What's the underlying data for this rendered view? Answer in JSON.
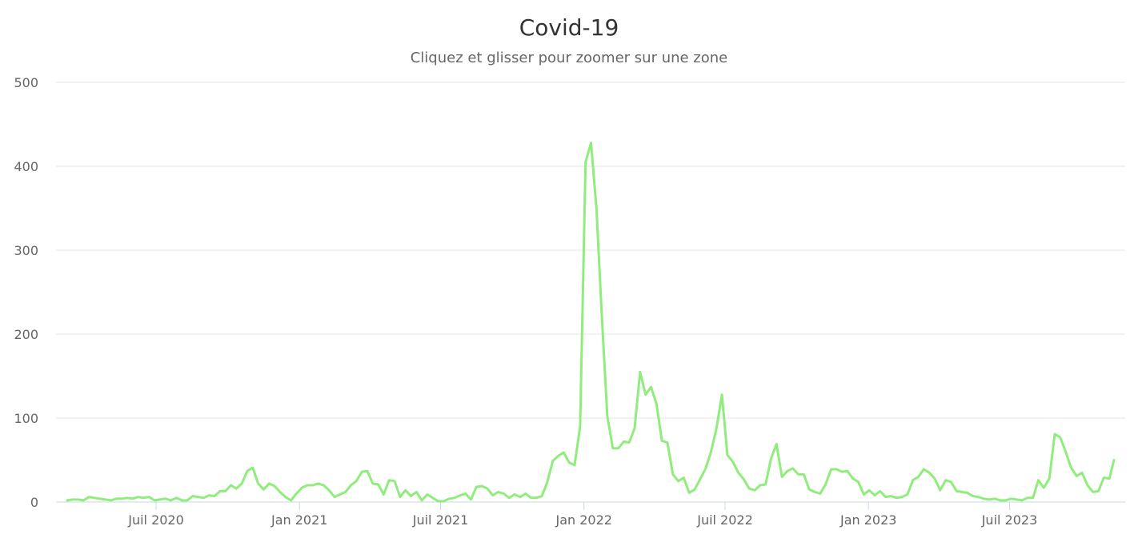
{
  "chart_data": {
    "type": "line",
    "title": "Covid-19",
    "subtitle": "Cliquez et glisser pour zoomer sur une zone",
    "xlabel": "",
    "ylabel": "",
    "ylim": [
      0,
      500
    ],
    "y_ticks": [
      "0",
      "100",
      "200",
      "300",
      "400",
      "500"
    ],
    "x_ticks": [
      {
        "label": "Juil 2020",
        "date": "2020-07-01"
      },
      {
        "label": "Jan 2021",
        "date": "2021-01-01"
      },
      {
        "label": "Juil 2021",
        "date": "2021-07-01"
      },
      {
        "label": "Jan 2022",
        "date": "2022-01-01"
      },
      {
        "label": "Juil 2022",
        "date": "2022-07-01"
      },
      {
        "label": "Jan 2023",
        "date": "2023-01-01"
      },
      {
        "label": "Juil 2023",
        "date": "2023-07-01"
      }
    ],
    "xlim": [
      "2020-03-09",
      "2023-11-12"
    ],
    "grid": true,
    "line_color": "#90ed7d",
    "series": [
      {
        "x": [
          "2020-03-09",
          "2020-03-16",
          "2020-03-23",
          "2020-03-30",
          "2020-04-06",
          "2020-04-13",
          "2020-04-20",
          "2020-04-27",
          "2020-05-04",
          "2020-05-11",
          "2020-05-18",
          "2020-05-25",
          "2020-06-01",
          "2020-06-08",
          "2020-06-15",
          "2020-06-22",
          "2020-06-29",
          "2020-07-06",
          "2020-07-13",
          "2020-07-20",
          "2020-07-27",
          "2020-08-03",
          "2020-08-10",
          "2020-08-17",
          "2020-08-24",
          "2020-08-31",
          "2020-09-07",
          "2020-09-14",
          "2020-09-21",
          "2020-09-28",
          "2020-10-05",
          "2020-10-12",
          "2020-10-19",
          "2020-10-26",
          "2020-11-02",
          "2020-11-09",
          "2020-11-16",
          "2020-11-23",
          "2020-11-30",
          "2020-12-07",
          "2020-12-14",
          "2020-12-21",
          "2020-12-28",
          "2021-01-04",
          "2021-01-11",
          "2021-01-18",
          "2021-01-25",
          "2021-02-01",
          "2021-02-08",
          "2021-02-15",
          "2021-02-22",
          "2021-03-01",
          "2021-03-08",
          "2021-03-15",
          "2021-03-22",
          "2021-03-29",
          "2021-04-05",
          "2021-04-12",
          "2021-04-19",
          "2021-04-26",
          "2021-05-03",
          "2021-05-10",
          "2021-05-17",
          "2021-05-24",
          "2021-05-31",
          "2021-06-07",
          "2021-06-14",
          "2021-06-21",
          "2021-06-28",
          "2021-07-05",
          "2021-07-12",
          "2021-07-19",
          "2021-07-26",
          "2021-08-02",
          "2021-08-09",
          "2021-08-16",
          "2021-08-23",
          "2021-08-30",
          "2021-09-06",
          "2021-09-13",
          "2021-09-20",
          "2021-09-27",
          "2021-10-04",
          "2021-10-11",
          "2021-10-18",
          "2021-10-25",
          "2021-11-01",
          "2021-11-08",
          "2021-11-15",
          "2021-11-22",
          "2021-11-29",
          "2021-12-06",
          "2021-12-13",
          "2021-12-20",
          "2021-12-27",
          "2022-01-03",
          "2022-01-10",
          "2022-01-17",
          "2022-01-24",
          "2022-01-31",
          "2022-02-07",
          "2022-02-14",
          "2022-02-21",
          "2022-02-28",
          "2022-03-07",
          "2022-03-14",
          "2022-03-21",
          "2022-03-28",
          "2022-04-04",
          "2022-04-11",
          "2022-04-18",
          "2022-04-25",
          "2022-05-02",
          "2022-05-09",
          "2022-05-16",
          "2022-05-23",
          "2022-05-30",
          "2022-06-06",
          "2022-06-13",
          "2022-06-20",
          "2022-06-27",
          "2022-07-04",
          "2022-07-11",
          "2022-07-18",
          "2022-07-25",
          "2022-08-01",
          "2022-08-08",
          "2022-08-15",
          "2022-08-22",
          "2022-08-29",
          "2022-09-05",
          "2022-09-12",
          "2022-09-19",
          "2022-09-26",
          "2022-10-03",
          "2022-10-10",
          "2022-10-17",
          "2022-10-24",
          "2022-10-31",
          "2022-11-07",
          "2022-11-14",
          "2022-11-21",
          "2022-11-28",
          "2022-12-05",
          "2022-12-12",
          "2022-12-19",
          "2022-12-26",
          "2023-01-02",
          "2023-01-09",
          "2023-01-16",
          "2023-01-23",
          "2023-01-30",
          "2023-02-06",
          "2023-02-13",
          "2023-02-20",
          "2023-02-27",
          "2023-03-06",
          "2023-03-13",
          "2023-03-20",
          "2023-03-27",
          "2023-04-03",
          "2023-04-10",
          "2023-04-17",
          "2023-04-24",
          "2023-05-01",
          "2023-05-08",
          "2023-05-15",
          "2023-05-22",
          "2023-05-29",
          "2023-06-05",
          "2023-06-12",
          "2023-06-19",
          "2023-06-26",
          "2023-07-03",
          "2023-07-10",
          "2023-07-17",
          "2023-07-24",
          "2023-07-31",
          "2023-08-07",
          "2023-08-14",
          "2023-08-21",
          "2023-08-28",
          "2023-09-04",
          "2023-09-11",
          "2023-09-18",
          "2023-09-25",
          "2023-10-02",
          "2023-10-09",
          "2023-10-16",
          "2023-10-23",
          "2023-10-30",
          "2023-11-06",
          "2023-11-12"
        ],
        "y": [
          2,
          3,
          3,
          2,
          6,
          5,
          4,
          3,
          2,
          4,
          4,
          5,
          4,
          6,
          5,
          6,
          2,
          3,
          4,
          2,
          5,
          2,
          2,
          7,
          6,
          5,
          8,
          7,
          13,
          13,
          20,
          16,
          22,
          37,
          41,
          22,
          15,
          22,
          19,
          12,
          6,
          2,
          10,
          17,
          20,
          20,
          22,
          20,
          14,
          6,
          9,
          12,
          20,
          25,
          36,
          37,
          22,
          21,
          9,
          26,
          25,
          6,
          14,
          7,
          12,
          2,
          9,
          5,
          1,
          1,
          4,
          5,
          8,
          10,
          3,
          18,
          19,
          16,
          8,
          12,
          10,
          5,
          9,
          6,
          10,
          5,
          5,
          7,
          24,
          49,
          55,
          59,
          47,
          44,
          90,
          405,
          428,
          350,
          220,
          102,
          64,
          64,
          72,
          71,
          88,
          155,
          128,
          137,
          117,
          73,
          71,
          33,
          25,
          29,
          11,
          15,
          27,
          40,
          60,
          88,
          128,
          56,
          48,
          35,
          27,
          16,
          14,
          20,
          21,
          52,
          69,
          30,
          37,
          40,
          33,
          33,
          15,
          12,
          10,
          21,
          39,
          39,
          36,
          37,
          28,
          24,
          9,
          14,
          8,
          13,
          6,
          7,
          5,
          6,
          9,
          26,
          30,
          39,
          35,
          28,
          14,
          26,
          24,
          13,
          12,
          11,
          7,
          6,
          4,
          3,
          4,
          2,
          2,
          4,
          3,
          2,
          5,
          5,
          26,
          17,
          28,
          81,
          77,
          60,
          41,
          31,
          35,
          20,
          12,
          13,
          29,
          28,
          50
        ]
      }
    ]
  }
}
